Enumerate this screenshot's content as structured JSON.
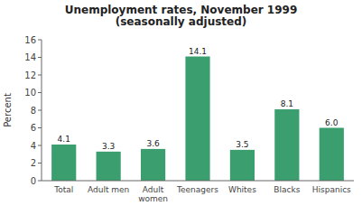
{
  "chart_data": {
    "type": "bar",
    "title": "Unemployment rates, November 1999\n(seasonally adjusted)",
    "categories": [
      "Total",
      "Adult men",
      "Adult\nwomen",
      "Teenagers",
      "Whites",
      "Blacks",
      "Hispanics"
    ],
    "values": [
      4.1,
      3.3,
      3.6,
      14.1,
      3.5,
      8.1,
      6.0
    ],
    "value_labels": [
      "4.1",
      "3.3",
      "3.6",
      "14.1",
      "3.5",
      "8.1",
      "6.0"
    ],
    "color": "#3a9e6e",
    "ylabel": "Percent",
    "ylim": [
      0,
      16
    ],
    "yticks": [
      0,
      2,
      4,
      6,
      8,
      10,
      12,
      14,
      16
    ],
    "grid": false,
    "data_labels": true
  }
}
